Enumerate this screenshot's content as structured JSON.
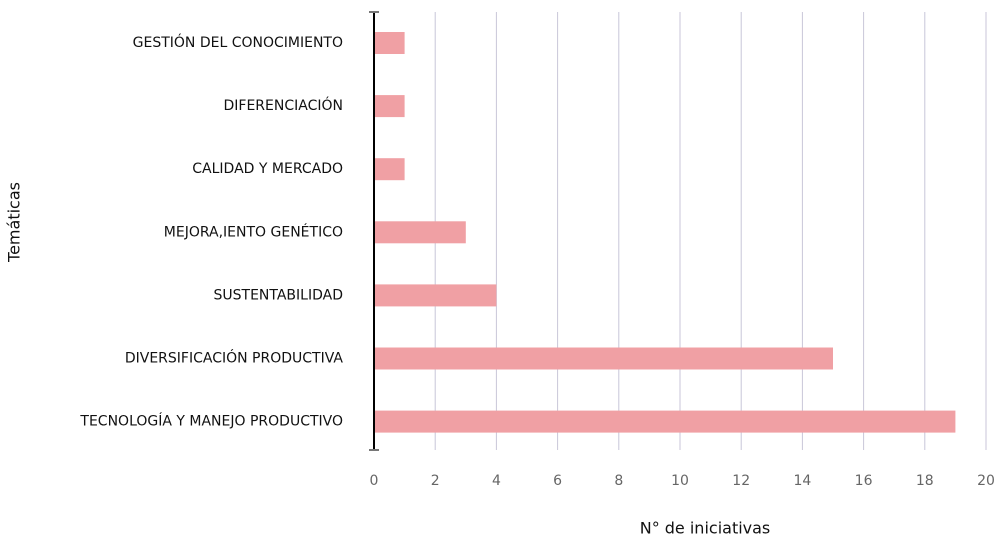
{
  "chart_data": {
    "type": "bar",
    "orientation": "horizontal",
    "categories": [
      "GESTIÓN DEL CONOCIMIENTO",
      "DIFERENCIACIÓN",
      "CALIDAD Y MERCADO",
      "MEJORA,IENTO GENÉTICO",
      "SUSTENTABILIDAD",
      "DIVERSIFICACIÓN PRODUCTIVA",
      "TECNOLOGÍA Y MANEJO PRODUCTIVO"
    ],
    "values": [
      1,
      1,
      1,
      3,
      4,
      15,
      19
    ],
    "color": "#f0a0a4",
    "xlabel": "N° de iniciativas",
    "ylabel": "Temáticas",
    "xlim": [
      0,
      20
    ],
    "xticks": [
      0,
      2,
      4,
      6,
      8,
      10,
      12,
      14,
      16,
      18,
      20
    ],
    "grid": true
  }
}
